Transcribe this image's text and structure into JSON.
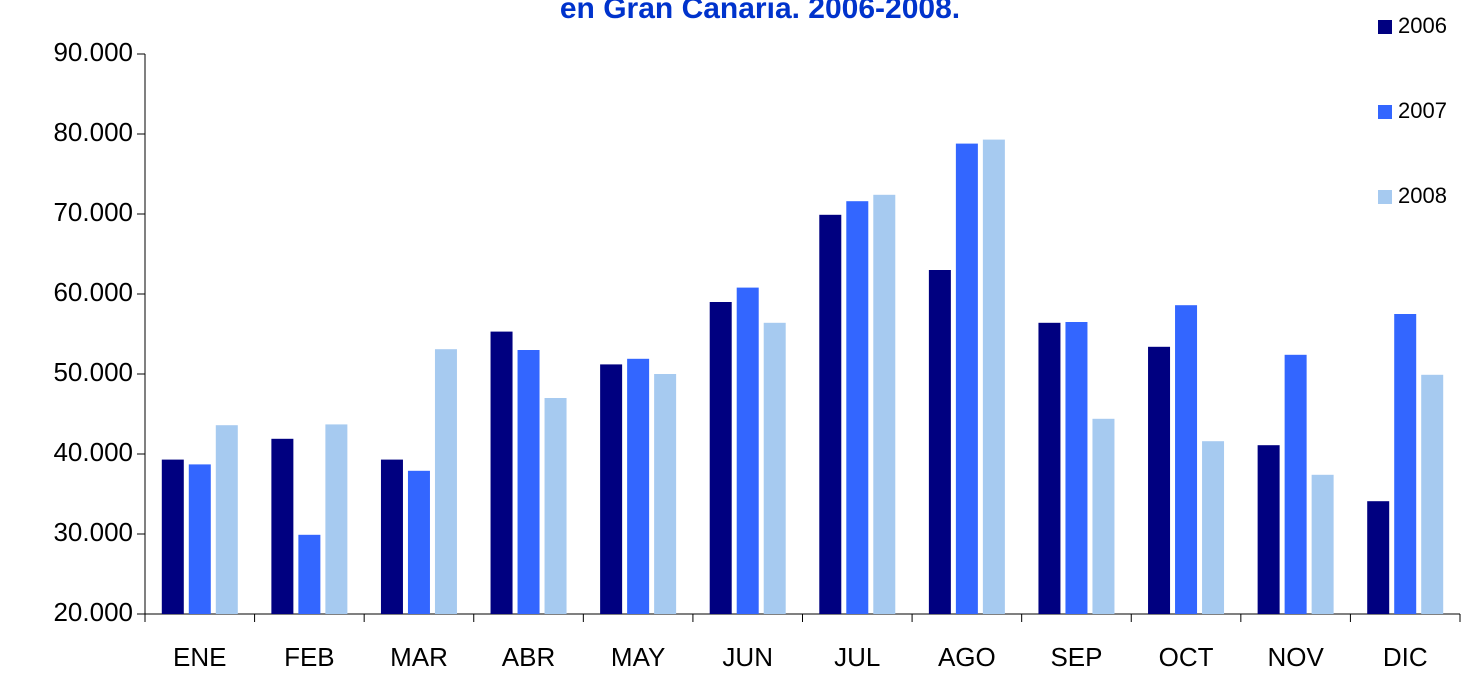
{
  "chart_data": {
    "type": "bar",
    "title": "en Gran Canaria. 2006-2008.",
    "categories": [
      "ENE",
      "FEB",
      "MAR",
      "ABR",
      "MAY",
      "JUN",
      "JUL",
      "AGO",
      "SEP",
      "OCT",
      "NOV",
      "DIC"
    ],
    "series": [
      {
        "name": "2006",
        "color": "#000080",
        "values": [
          39300,
          41900,
          39300,
          55300,
          51200,
          59000,
          69900,
          63000,
          56400,
          53400,
          41100,
          34100
        ]
      },
      {
        "name": "2007",
        "color": "#3366ff",
        "values": [
          38700,
          29900,
          37900,
          53000,
          51900,
          60800,
          71600,
          78800,
          56500,
          58600,
          52400,
          57500
        ]
      },
      {
        "name": "2008",
        "color": "#a6caf0",
        "values": [
          43600,
          43700,
          53100,
          47000,
          50000,
          56400,
          72400,
          79300,
          44400,
          41600,
          37400,
          49900
        ]
      }
    ],
    "ylim": [
      20000,
      90000
    ],
    "yticks": [
      {
        "value": 20000,
        "label": "20.000"
      },
      {
        "value": 30000,
        "label": "30.000"
      },
      {
        "value": 40000,
        "label": "40.000"
      },
      {
        "value": 50000,
        "label": "50.000"
      },
      {
        "value": 60000,
        "label": "60.000"
      },
      {
        "value": 70000,
        "label": "70.000"
      },
      {
        "value": 80000,
        "label": "80.000"
      },
      {
        "value": 90000,
        "label": "90.000"
      }
    ],
    "grid": false,
    "legend": "right"
  }
}
